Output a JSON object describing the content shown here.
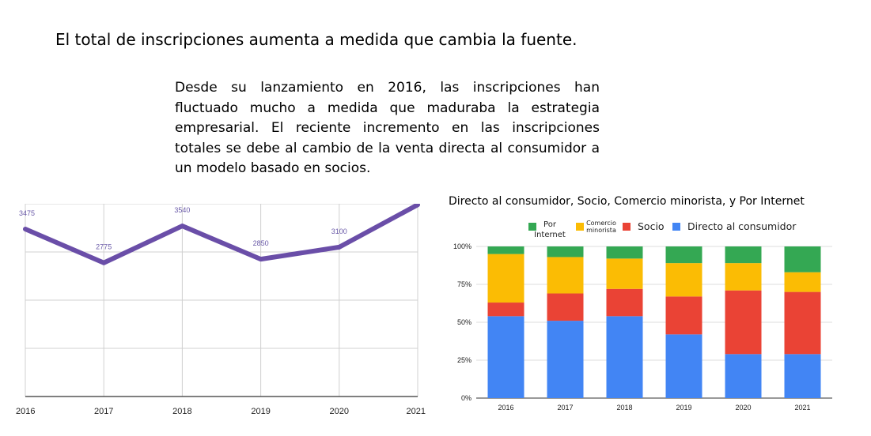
{
  "heading": "El total de inscripciones aumenta a medida que cambia la fuente.",
  "paragraph": "Desde su lanzamiento en 2016, las inscripciones han fluctuado mucho a medida que maduraba la estrategia empresarial. El reciente incremento en las inscripciones totales se debe al cambio de la venta directa al consumidor a un modelo basado en socios.",
  "chart_data": [
    {
      "type": "line",
      "title": "",
      "x": [
        "2016",
        "2017",
        "2018",
        "2019",
        "2020",
        "2021"
      ],
      "series": [
        {
          "values": [
            3475,
            2775,
            3540,
            2850,
            3100,
            3980
          ]
        }
      ],
      "data_labels": [
        "3475",
        "2775",
        "3540",
        "2850",
        "3100"
      ],
      "ylim": [
        0,
        4000
      ],
      "grid": true,
      "colors": {
        "line": "#6a4ea8",
        "label": "#6a5aa8"
      }
    },
    {
      "type": "bar",
      "stacked": "percent",
      "title": "Directo al consumidor, Socio, Comercio minorista, y Por Internet",
      "categories": [
        "2016",
        "2017",
        "2018",
        "2019",
        "2020",
        "2021"
      ],
      "yticks": [
        "0%",
        "25%",
        "50%",
        "75%",
        "100%"
      ],
      "ylim": [
        0,
        100
      ],
      "legend_position": "top",
      "legend": [
        {
          "label": "Por Internet",
          "lines": [
            "Por",
            "Internet"
          ],
          "color": "#34a853",
          "size": "small"
        },
        {
          "label": "Comercio minorista",
          "lines": [
            "Comercio",
            "minorista"
          ],
          "color": "#fbbc04",
          "size": "tiny"
        },
        {
          "label": "Socio",
          "lines": [
            "Socio"
          ],
          "color": "#ea4335",
          "size": "normal"
        },
        {
          "label": "Directo al consumidor",
          "lines": [
            "Directo al consumidor"
          ],
          "color": "#4285f4",
          "size": "normal"
        }
      ],
      "series": [
        {
          "name": "Directo al consumidor",
          "color": "#4285f4",
          "values": [
            54,
            51,
            54,
            42,
            29,
            29
          ]
        },
        {
          "name": "Socio",
          "color": "#ea4335",
          "values": [
            9,
            18,
            18,
            25,
            42,
            41
          ]
        },
        {
          "name": "Comercio minorista",
          "color": "#fbbc04",
          "values": [
            32,
            24,
            20,
            22,
            18,
            13
          ]
        },
        {
          "name": "Por Internet",
          "color": "#34a853",
          "values": [
            5,
            7,
            8,
            11,
            11,
            17
          ]
        }
      ]
    }
  ]
}
